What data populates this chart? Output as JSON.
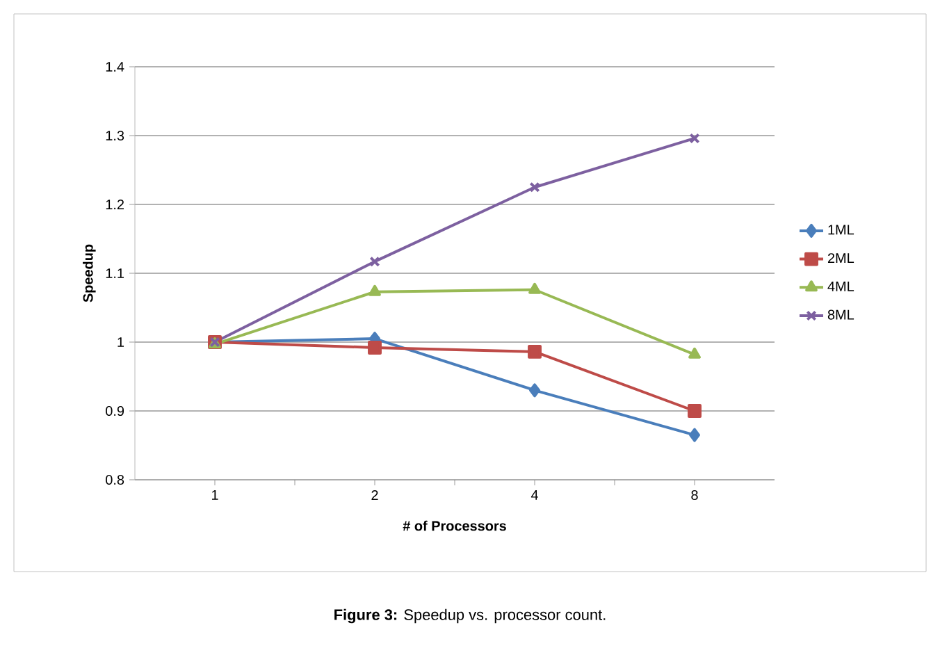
{
  "chart_data": {
    "type": "line",
    "xlabel": "# of Processors",
    "ylabel": "Speedup",
    "categories": [
      "1",
      "2",
      "4",
      "8"
    ],
    "series": [
      {
        "name": "1ML",
        "color": "#4a7ebb",
        "marker": "diamond",
        "values": [
          1.0,
          1.005,
          0.93,
          0.865
        ]
      },
      {
        "name": "2ML",
        "color": "#be4b48",
        "marker": "square",
        "values": [
          1.0,
          0.992,
          0.986,
          0.9
        ]
      },
      {
        "name": "4ML",
        "color": "#98b954",
        "marker": "triangle",
        "values": [
          0.997,
          1.073,
          1.076,
          0.982
        ]
      },
      {
        "name": "8ML",
        "color": "#7d60a0",
        "marker": "cross",
        "values": [
          1.0,
          1.117,
          1.225,
          1.296
        ]
      }
    ],
    "ylim": [
      0.8,
      1.4
    ],
    "yticks": [
      0.8,
      0.9,
      1,
      1.1,
      1.2,
      1.3,
      1.4
    ],
    "grid": "y",
    "legend": "right",
    "annotations": [
      "**Figure 3:** Speedup vs. processor count."
    ]
  }
}
